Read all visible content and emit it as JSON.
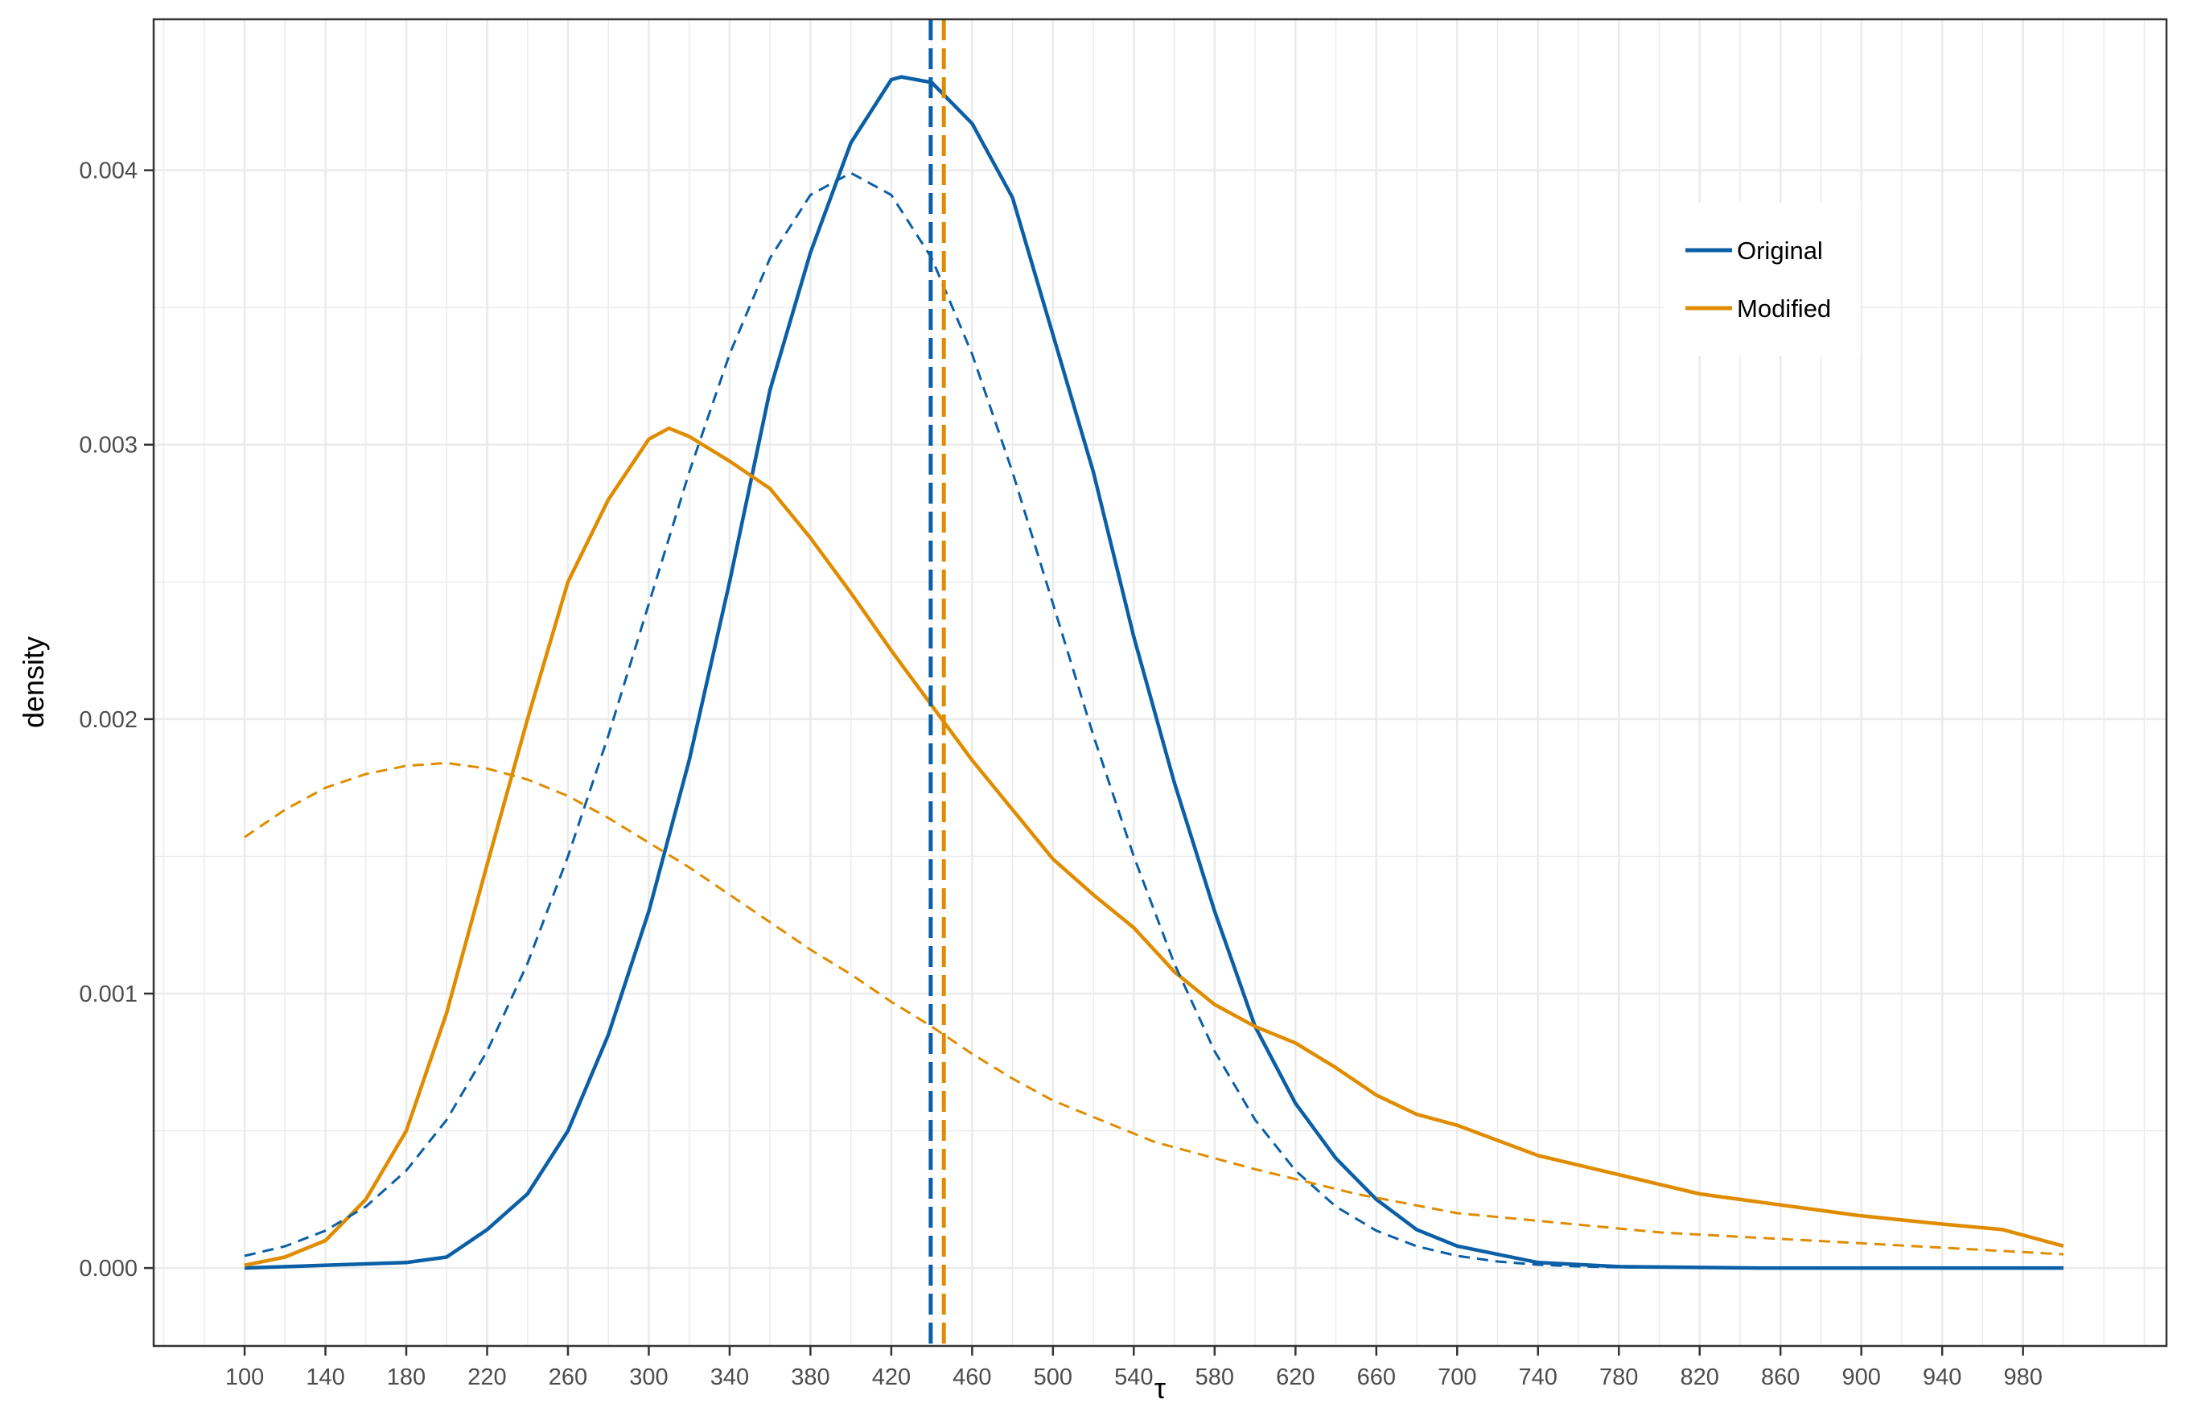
{
  "chart_data": {
    "type": "line",
    "title": "",
    "xlabel": "τ",
    "ylabel": "density",
    "xlim": [
      55,
      1051
    ],
    "ylim": [
      -0.000284,
      0.00455
    ],
    "grid": true,
    "legend_position": "top-right",
    "x_ticks": [
      100,
      140,
      180,
      220,
      260,
      300,
      340,
      380,
      420,
      460,
      500,
      540,
      580,
      620,
      660,
      700,
      740,
      780,
      820,
      860,
      900,
      940,
      980
    ],
    "y_ticks": [
      "0.000",
      "0.001",
      "0.002",
      "0.003",
      "0.004"
    ],
    "y_tick_values": [
      0,
      0.001,
      0.002,
      0.003,
      0.004
    ],
    "colors": {
      "Original": "#0a5fa6",
      "Modified": "#e08c00"
    },
    "legend": [
      "Original",
      "Modified"
    ],
    "series": [
      {
        "name": "Original",
        "style": "solid",
        "x": [
          100,
          180,
          200,
          220,
          240,
          260,
          280,
          300,
          320,
          340,
          360,
          380,
          400,
          420,
          425,
          440,
          460,
          480,
          500,
          520,
          540,
          560,
          580,
          600,
          620,
          640,
          660,
          680,
          700,
          720,
          740,
          780,
          850,
          1000
        ],
        "y": [
          0,
          2e-05,
          4e-05,
          0.00014,
          0.00027,
          0.0005,
          0.00085,
          0.0013,
          0.00185,
          0.0025,
          0.0032,
          0.0037,
          0.0041,
          0.00433,
          0.00434,
          0.00432,
          0.00417,
          0.0039,
          0.0034,
          0.0029,
          0.0023,
          0.00177,
          0.0013,
          0.00088,
          0.0006,
          0.0004,
          0.00025,
          0.00014,
          8e-05,
          5e-05,
          2e-05,
          5e-06,
          0,
          0
        ]
      },
      {
        "name": "Modified",
        "style": "solid",
        "x": [
          100,
          120,
          140,
          160,
          180,
          200,
          220,
          240,
          260,
          280,
          300,
          310,
          320,
          340,
          360,
          380,
          400,
          420,
          440,
          460,
          480,
          500,
          520,
          540,
          560,
          580,
          600,
          620,
          640,
          660,
          680,
          700,
          740,
          780,
          820,
          860,
          900,
          940,
          970,
          990,
          1000
        ],
        "y": [
          1e-05,
          4e-05,
          0.0001,
          0.00025,
          0.0005,
          0.00093,
          0.00147,
          0.002,
          0.0025,
          0.0028,
          0.00302,
          0.00306,
          0.00303,
          0.00294,
          0.00284,
          0.00266,
          0.00246,
          0.00225,
          0.00205,
          0.00185,
          0.00167,
          0.00149,
          0.00136,
          0.00124,
          0.00108,
          0.00096,
          0.00088,
          0.00082,
          0.00073,
          0.00063,
          0.00056,
          0.00052,
          0.00041,
          0.00034,
          0.00027,
          0.00023,
          0.00019,
          0.00016,
          0.00014,
          0.0001,
          8e-05
        ]
      },
      {
        "name": "Original fit",
        "style": "dashed",
        "x": [
          100,
          120,
          140,
          160,
          180,
          200,
          220,
          240,
          260,
          280,
          300,
          320,
          340,
          360,
          380,
          400,
          420,
          440,
          460,
          480,
          500,
          520,
          540,
          560,
          580,
          600,
          620,
          640,
          660,
          680,
          700,
          720,
          740,
          760,
          780,
          800
        ],
        "y": [
          4.43e-05,
          7.92e-05,
          0.000136,
          0.000224,
          0.000355,
          0.00054,
          0.00079,
          0.00111,
          0.0015,
          0.00194,
          0.00242,
          0.0029,
          0.00333,
          0.00368,
          0.00391,
          0.00399,
          0.00391,
          0.00368,
          0.00333,
          0.0029,
          0.00242,
          0.00194,
          0.0015,
          0.00111,
          0.00079,
          0.00054,
          0.000355,
          0.000224,
          0.000136,
          7.92e-05,
          4.43e-05,
          2.38e-05,
          1.21e-05,
          5.8e-06,
          2.7e-06,
          1.2e-06
        ]
      },
      {
        "name": "Modified fit",
        "style": "dashed",
        "x": [
          100,
          120,
          140,
          160,
          180,
          200,
          220,
          240,
          260,
          280,
          300,
          320,
          340,
          360,
          380,
          400,
          420,
          440,
          460,
          480,
          500,
          550,
          600,
          650,
          700,
          800,
          900,
          1000
        ],
        "y": [
          0.00157,
          0.00167,
          0.00175,
          0.0018,
          0.00183,
          0.00184,
          0.00182,
          0.00178,
          0.00172,
          0.00164,
          0.00155,
          0.00146,
          0.00136,
          0.00126,
          0.00116,
          0.00107,
          0.00097,
          0.00088,
          0.00078,
          0.00069,
          0.00061,
          0.00046,
          0.00036,
          0.00027,
          0.0002,
          0.00013,
          9e-05,
          5e-05
        ]
      }
    ],
    "vlines": [
      {
        "name": "Original mean",
        "x": 439.5
      },
      {
        "name": "Modified mean",
        "x": 446
      }
    ]
  }
}
